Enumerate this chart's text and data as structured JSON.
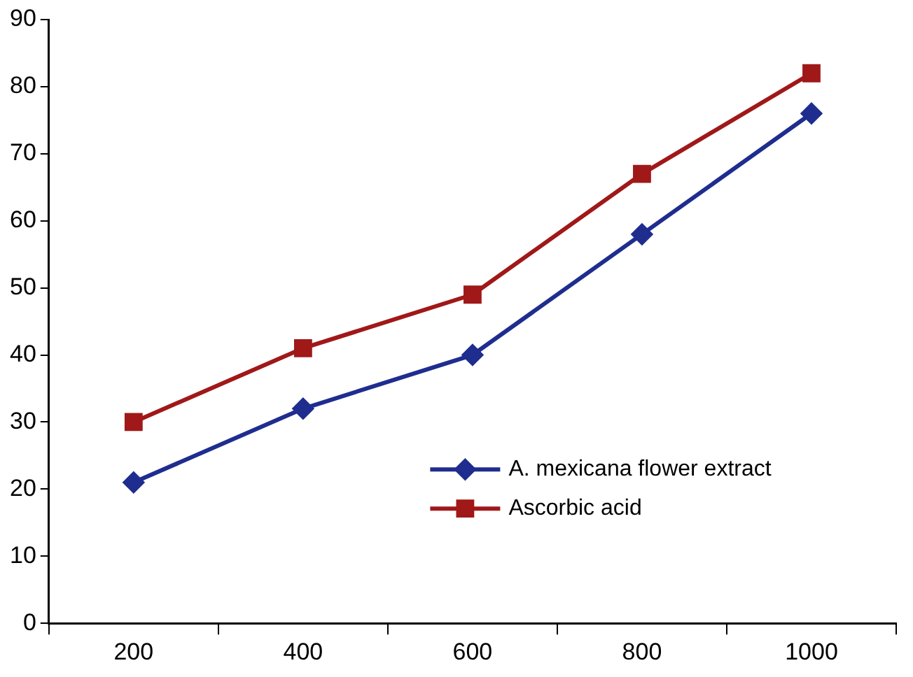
{
  "chart_data": {
    "type": "line",
    "categories": [
      "200",
      "400",
      "600",
      "800",
      "1000"
    ],
    "series": [
      {
        "name": "A. mexicana flower extract",
        "color": "#1f2d8f",
        "values": [
          21,
          32,
          40,
          58,
          76
        ],
        "marker": "diamond"
      },
      {
        "name": "Ascorbic acid",
        "color": "#a01818",
        "values": [
          30,
          41,
          49,
          67,
          82
        ],
        "marker": "square"
      }
    ],
    "ylim": [
      0,
      90
    ],
    "yticks": [
      0,
      10,
      20,
      30,
      40,
      50,
      60,
      70,
      80,
      90
    ],
    "grid": false,
    "legend": "bottom right"
  }
}
